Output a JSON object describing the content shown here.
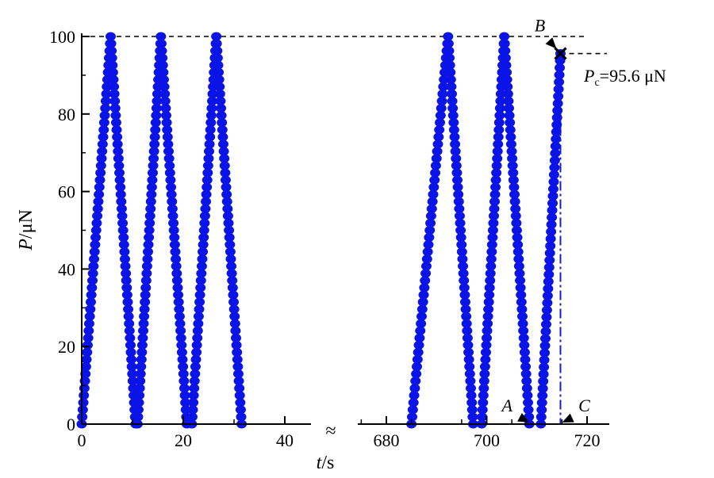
{
  "chart_data": {
    "type": "scatter",
    "xlabel": {
      "italic": "t",
      "rest": "/s"
    },
    "ylabel": {
      "italic": "P",
      "rest": "/μN"
    },
    "ylim": [
      0,
      100
    ],
    "x_axis_break": true,
    "x_segments": [
      {
        "xlim": [
          0,
          45
        ],
        "ticks": [
          0,
          20,
          40
        ]
      },
      {
        "xlim": [
          675,
          725
        ],
        "ticks": [
          680,
          700,
          720
        ]
      }
    ],
    "y_ticks": [
      0,
      20,
      40,
      60,
      80,
      100
    ],
    "series": [
      {
        "color": "#0a14e6",
        "cycles": [
          {
            "segment": 0,
            "t_start": 0,
            "t_peak": 5.7,
            "t_end": 10.6,
            "p_peak": 100
          },
          {
            "segment": 0,
            "t_start": 11.0,
            "t_peak": 15.6,
            "t_end": 20.7,
            "p_peak": 100
          },
          {
            "segment": 0,
            "t_start": 21.7,
            "t_peak": 26.5,
            "t_end": 31.5,
            "p_peak": 100
          },
          {
            "segment": 1,
            "t_start": 685.0,
            "t_peak": 692.3,
            "t_end": 697.3,
            "p_peak": 100
          },
          {
            "segment": 1,
            "t_start": 699.0,
            "t_peak": 703.5,
            "t_end": 708.5,
            "p_peak": 100
          },
          {
            "segment": 1,
            "t_start": 710.8,
            "t_peak": 714.7,
            "t_end": 714.7,
            "p_peak": 95.6
          }
        ]
      }
    ],
    "reference_lines": [
      {
        "style": "dashed",
        "y": 100
      },
      {
        "style": "dashed",
        "y": 95.6
      },
      {
        "style": "dash-dot",
        "x": 714.7
      }
    ],
    "annotations": [
      {
        "label": "A",
        "x": 708.5,
        "y": 0
      },
      {
        "label": "B",
        "x": 714.7,
        "y": 95.6
      },
      {
        "label": "C",
        "x": 714.7,
        "y": 0
      }
    ],
    "critical_label": {
      "sym": "P",
      "sub": "c",
      "value": "=95.6 μN"
    },
    "critical_point": {
      "x": 714.7,
      "y": 95.6
    },
    "break_symbol": "≈"
  }
}
